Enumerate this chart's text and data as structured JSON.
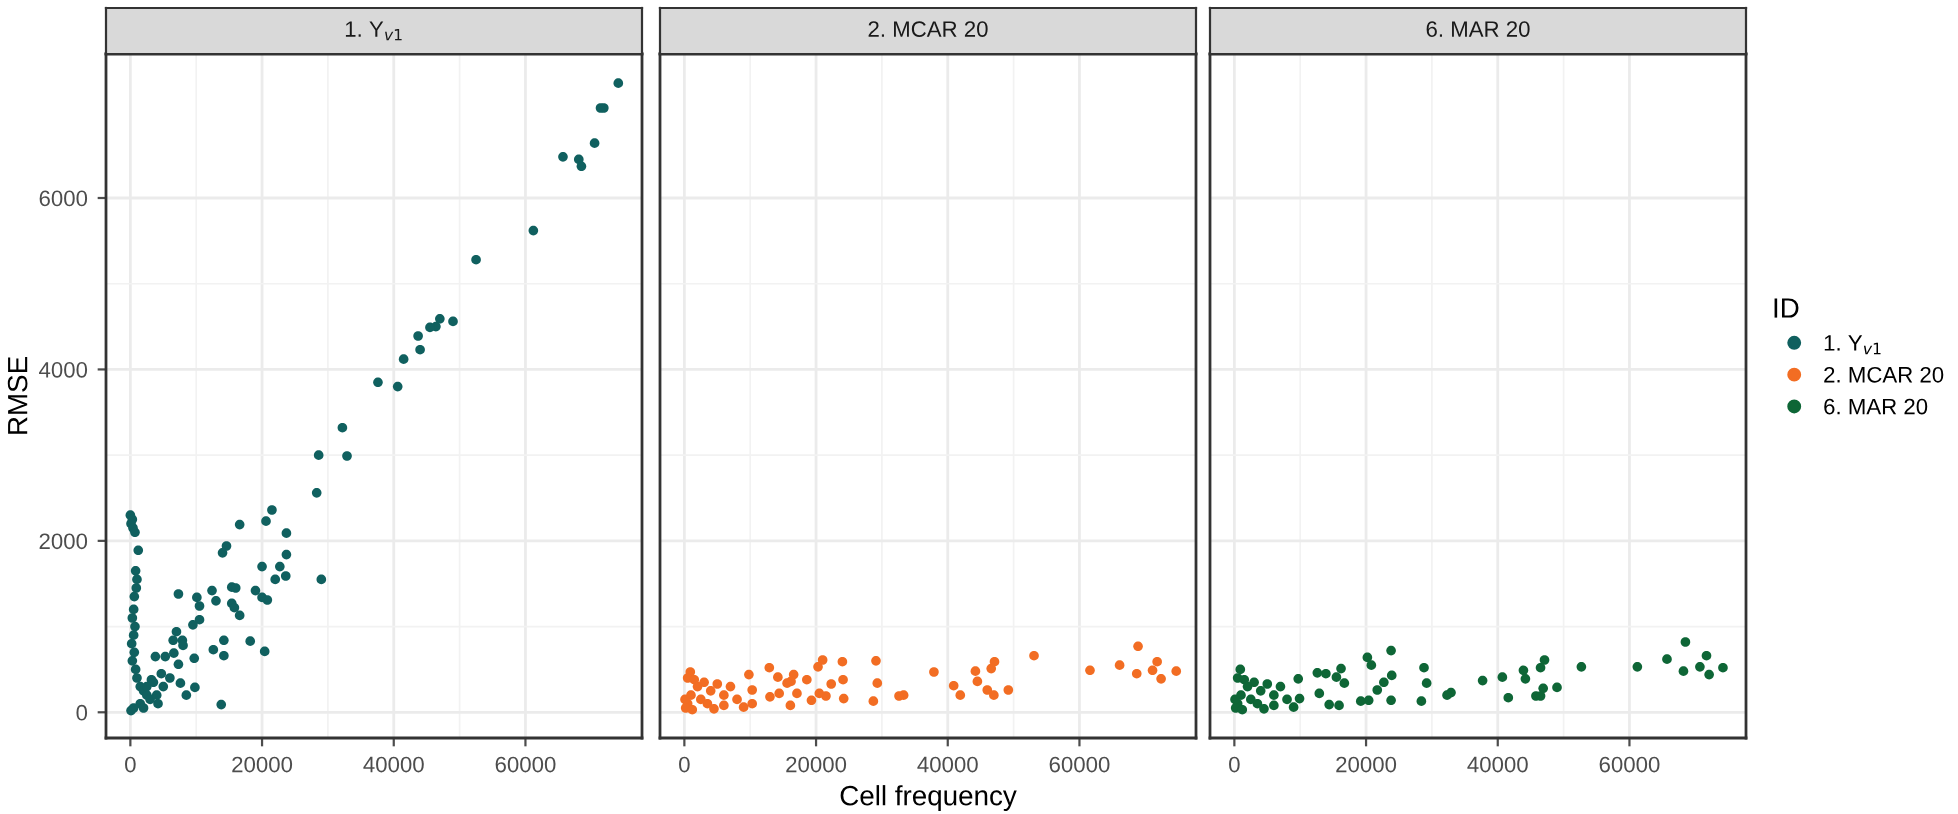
{
  "chart_data": [
    {
      "type": "scatter",
      "title": "1. Y$_{v1}$",
      "ylabel": "RMSE",
      "xlim": [
        -3700,
        77700
      ],
      "ylim": [
        -300,
        7680
      ],
      "xticks": [
        0,
        20000,
        40000,
        60000
      ],
      "yticks": [
        0,
        2000,
        4000,
        6000
      ],
      "grid": true,
      "marker": "circle",
      "series": [
        {
          "name": "1. Y$_{v1}$",
          "color": "#10605f",
          "x": [
            74100,
            71900,
            71400,
            70500,
            65700,
            68100,
            68500,
            61200,
            52500,
            49000,
            47000,
            46400,
            45500,
            43700,
            44000,
            41500,
            37600,
            40600,
            32200,
            32900,
            28600,
            28300,
            29000,
            21500,
            20600,
            16600,
            23700,
            23700,
            23600,
            22000,
            22700,
            20000,
            20000,
            20800,
            19000,
            14600,
            14000,
            15400,
            16000,
            15400,
            15800,
            16600,
            12400,
            13000,
            10100,
            10500,
            10500,
            9500,
            7300,
            18200,
            14200,
            12600,
            20400,
            14200,
            9700,
            9800,
            8500,
            13800,
            7000,
            6500,
            7900,
            8000,
            6600,
            7300,
            7600,
            3800,
            5300,
            4700,
            3200,
            4200,
            0,
            300,
            100,
            400,
            700,
            1200,
            800,
            1000,
            900,
            600,
            500,
            300,
            700,
            500,
            200,
            600,
            300,
            800,
            1000,
            1500,
            2000,
            2500,
            3000,
            1500,
            500,
            100,
            2000,
            4000,
            5000,
            6000,
            3500,
            2500
          ],
          "values": [
            7340,
            7050,
            7050,
            6640,
            6480,
            6450,
            6370,
            5620,
            5280,
            4560,
            4590,
            4500,
            4490,
            4390,
            4230,
            4120,
            3850,
            3800,
            3320,
            2990,
            3000,
            2560,
            1550,
            2360,
            2230,
            2190,
            2090,
            1840,
            1590,
            1550,
            1700,
            1700,
            1340,
            1310,
            1420,
            1940,
            1860,
            1460,
            1450,
            1270,
            1220,
            1130,
            1420,
            1300,
            1340,
            1240,
            1080,
            1020,
            1380,
            830,
            840,
            730,
            710,
            660,
            630,
            290,
            200,
            90,
            940,
            840,
            840,
            780,
            690,
            560,
            340,
            650,
            650,
            450,
            380,
            100,
            2300,
            2250,
            2200,
            2150,
            2100,
            1890,
            1650,
            1550,
            1450,
            1350,
            1200,
            1100,
            1000,
            900,
            800,
            700,
            600,
            500,
            400,
            300,
            250,
            200,
            150,
            100,
            50,
            20,
            50,
            200,
            300,
            400,
            350,
            300
          ]
        }
      ]
    },
    {
      "type": "scatter",
      "title": "2. MCAR 20",
      "xlabel": "Cell frequency",
      "xlim": [
        -3700,
        77700
      ],
      "ylim": [
        -300,
        7680
      ],
      "xticks": [
        0,
        20000,
        40000,
        60000
      ],
      "yticks": [
        0,
        2000,
        4000,
        6000
      ],
      "tick_labels": "x",
      "grid": true,
      "marker": "circle",
      "series": [
        {
          "name": "2. MCAR 20",
          "color": "#f26d23",
          "x": [
            68900,
            71800,
            66100,
            74700,
            71100,
            72400,
            68700,
            61600,
            53100,
            49200,
            47100,
            46600,
            44200,
            44500,
            46000,
            47000,
            40900,
            41900,
            37900,
            33300,
            32600,
            29100,
            29300,
            28700,
            24000,
            24100,
            24200,
            21000,
            20300,
            22300,
            21500,
            20500,
            19300,
            18600,
            16600,
            16200,
            15600,
            17100,
            14200,
            12900,
            14400,
            13000,
            16100,
            9800,
            10300,
            10300,
            900,
            500,
            1500,
            3000,
            5000,
            7000,
            2000,
            4000,
            6000,
            8000,
            1000,
            500,
            2500,
            3500,
            200,
            6000,
            9000,
            1200,
            4500,
            100
          ],
          "values": [
            770,
            590,
            550,
            480,
            490,
            390,
            450,
            490,
            660,
            260,
            590,
            510,
            480,
            360,
            260,
            200,
            310,
            200,
            470,
            200,
            190,
            600,
            340,
            130,
            590,
            380,
            160,
            610,
            530,
            330,
            190,
            220,
            140,
            380,
            440,
            360,
            340,
            220,
            410,
            520,
            220,
            180,
            80,
            440,
            260,
            100,
            470,
            400,
            380,
            350,
            330,
            300,
            300,
            250,
            200,
            150,
            200,
            100,
            150,
            100,
            50,
            80,
            60,
            30,
            40,
            150
          ]
        }
      ]
    },
    {
      "type": "scatter",
      "xlim": [
        -3700,
        77700
      ],
      "ylim": [
        -300,
        7680
      ],
      "title": "6. MAR 20",
      "xticks": [
        0,
        20000,
        40000,
        60000
      ],
      "yticks": [
        0,
        2000,
        4000,
        6000
      ],
      "tick_labels": "x",
      "grid": true,
      "marker": "circle",
      "legend": "right",
      "legend_title": "ID",
      "series": [
        {
          "name": "6. MAR 20",
          "color": "#0e6636",
          "x": [
            68500,
            71700,
            65700,
            70700,
            74200,
            68200,
            72100,
            61200,
            52700,
            49000,
            47100,
            46500,
            43900,
            44200,
            46900,
            45800,
            46500,
            41600,
            40700,
            37700,
            32900,
            32300,
            28800,
            29200,
            28400,
            23800,
            23900,
            23800,
            20200,
            20800,
            20400,
            19200,
            21700,
            22700,
            16200,
            16700,
            15500,
            13900,
            12600,
            15900,
            14400,
            12900,
            9700,
            9900,
            900,
            500,
            1500,
            3000,
            5000,
            7000,
            2000,
            4000,
            6000,
            8000,
            1000,
            500,
            2500,
            3500,
            200,
            6000,
            9000,
            1200,
            4500,
            100
          ],
          "values": [
            820,
            660,
            620,
            530,
            520,
            480,
            440,
            530,
            530,
            290,
            610,
            520,
            490,
            390,
            280,
            190,
            190,
            170,
            410,
            370,
            230,
            200,
            520,
            340,
            130,
            720,
            430,
            140,
            640,
            550,
            140,
            130,
            260,
            350,
            510,
            340,
            410,
            450,
            460,
            80,
            90,
            220,
            390,
            160,
            500,
            400,
            380,
            350,
            330,
            300,
            300,
            250,
            200,
            150,
            200,
            100,
            150,
            100,
            50,
            80,
            60,
            30,
            40,
            150
          ]
        }
      ]
    }
  ]
}
